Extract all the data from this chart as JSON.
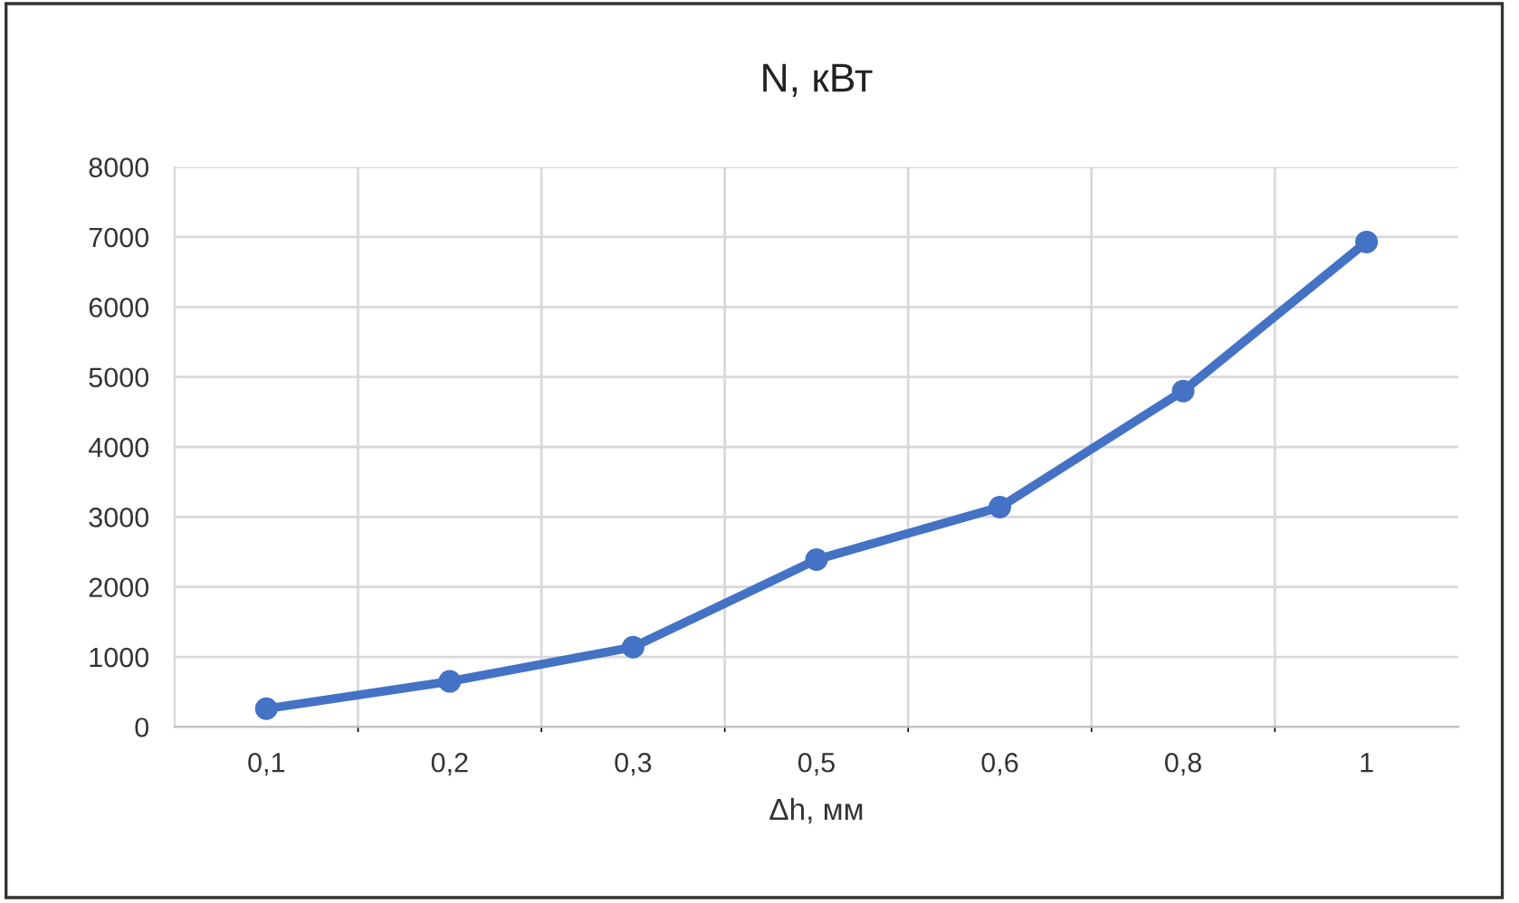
{
  "chart_data": {
    "type": "line",
    "title": "N, кВт",
    "xlabel": "Δh, мм",
    "categories": [
      "0,1",
      "0,2",
      "0,3",
      "0,5",
      "0,6",
      "0,8",
      "1"
    ],
    "series": [
      {
        "color": "#4472c4",
        "values": [
          260,
          650,
          1140,
          2390,
          3140,
          4800,
          6930
        ]
      }
    ],
    "ylim": [
      0,
      8000
    ],
    "yticks": [
      0,
      1000,
      2000,
      3000,
      4000,
      5000,
      6000,
      7000,
      8000
    ],
    "grid": true,
    "marker": "circle",
    "line_style": "solid"
  }
}
